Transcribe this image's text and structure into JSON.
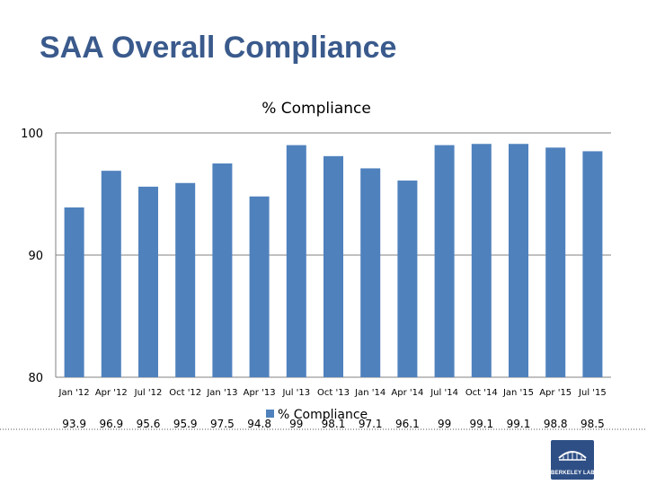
{
  "slide": {
    "title": "SAA Overall Compliance"
  },
  "logo": {
    "text": "BERKELEY LAB"
  },
  "colors": {
    "bar": "#4f81bd",
    "grid": "#808080",
    "title": "#3a5a8c",
    "logo_bg": "#2e4f86"
  },
  "chart_data": {
    "type": "bar",
    "title": "% Compliance",
    "xlabel": "",
    "ylabel": "",
    "ylim": [
      80,
      100
    ],
    "yticks": [
      80,
      90,
      100
    ],
    "grid": true,
    "legend_position": "bottom",
    "categories": [
      "Jan '12",
      "Apr '12",
      "Jul '12",
      "Oct '12",
      "Jan '13",
      "Apr '13",
      "Jul '13",
      "Oct '13",
      "Jan '14",
      "Apr '14",
      "Jul '14",
      "Oct '14",
      "Jan '15",
      "Apr '15",
      "Jul '15"
    ],
    "series": [
      {
        "name": "% Compliance",
        "values": [
          93.9,
          96.9,
          95.6,
          95.9,
          97.5,
          94.8,
          99,
          98.1,
          97.1,
          96.1,
          99,
          99.1,
          99.1,
          98.8,
          98.5
        ],
        "labels": [
          "93.9",
          "96.9",
          "95.6",
          "95.9",
          "97.5",
          "94.8",
          "99",
          "98.1",
          "97.1",
          "96.1",
          "99",
          "99.1",
          "99.1",
          "98.8",
          "98.5"
        ]
      }
    ]
  }
}
